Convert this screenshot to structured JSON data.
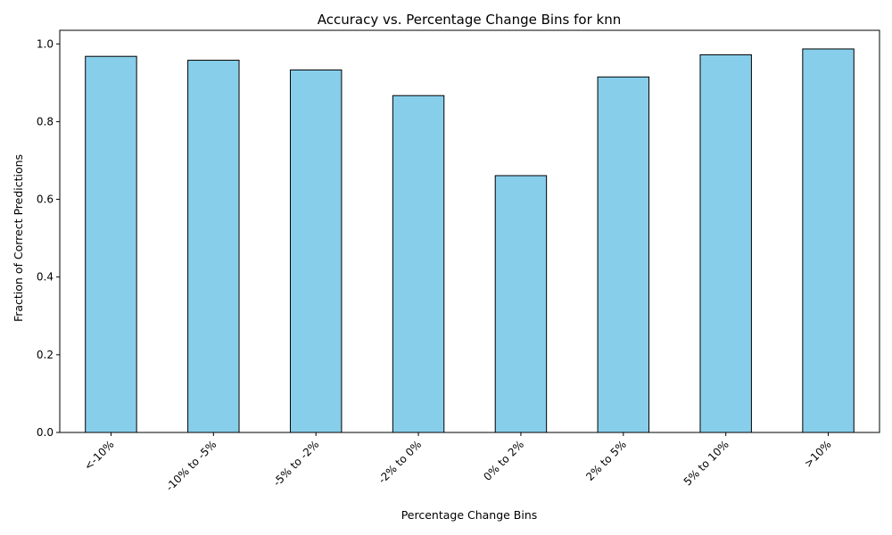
{
  "chart_data": {
    "type": "bar",
    "title": "Accuracy vs. Percentage Change Bins for knn",
    "xlabel": "Percentage Change Bins",
    "ylabel": "Fraction of Correct Predictions",
    "categories": [
      "<-10%",
      "-10% to -5%",
      "-5% to -2%",
      "-2% to 0%",
      "0% to 2%",
      "2% to 5%",
      "5% to 10%",
      ">10%"
    ],
    "values": [
      0.968,
      0.958,
      0.933,
      0.867,
      0.661,
      0.915,
      0.972,
      0.987
    ],
    "ylim": [
      0,
      1.035
    ],
    "yticks": [
      "0.0",
      "0.2",
      "0.4",
      "0.6",
      "0.8",
      "1.0"
    ],
    "ytick_values": [
      0,
      0.2,
      0.4,
      0.6,
      0.8,
      1.0
    ],
    "bar_color": "#87ceeb",
    "bar_edge_color": "#000000",
    "grid": false,
    "legend": "none"
  }
}
